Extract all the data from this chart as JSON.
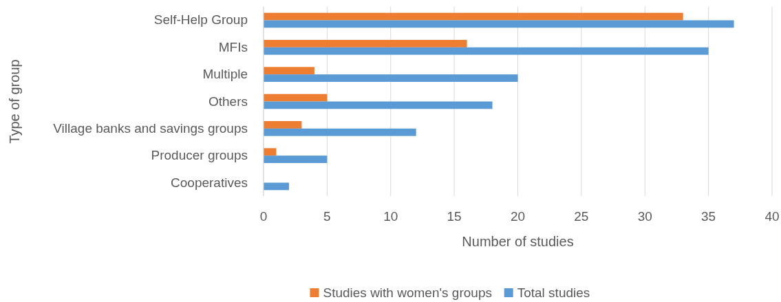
{
  "chart_data": {
    "type": "bar",
    "orientation": "horizontal",
    "xlabel": "Number of studies",
    "ylabel": "Type of group",
    "categories": [
      "Self-Help Group",
      "MFIs",
      "Multiple",
      "Others",
      "Village banks and savings groups",
      "Producer groups",
      "Cooperatives"
    ],
    "series": [
      {
        "name": "Studies with women's groups",
        "color": "#ed7d31",
        "values": [
          33,
          16,
          4,
          5,
          3,
          1,
          0
        ]
      },
      {
        "name": "Total studies",
        "color": "#5b9bd5",
        "values": [
          37,
          35,
          20,
          18,
          12,
          5,
          2
        ]
      }
    ],
    "xlim": [
      0,
      40
    ],
    "xticks": [
      0,
      5,
      10,
      15,
      20,
      25,
      30,
      35,
      40
    ],
    "grid": "x",
    "legend": "bottom"
  }
}
